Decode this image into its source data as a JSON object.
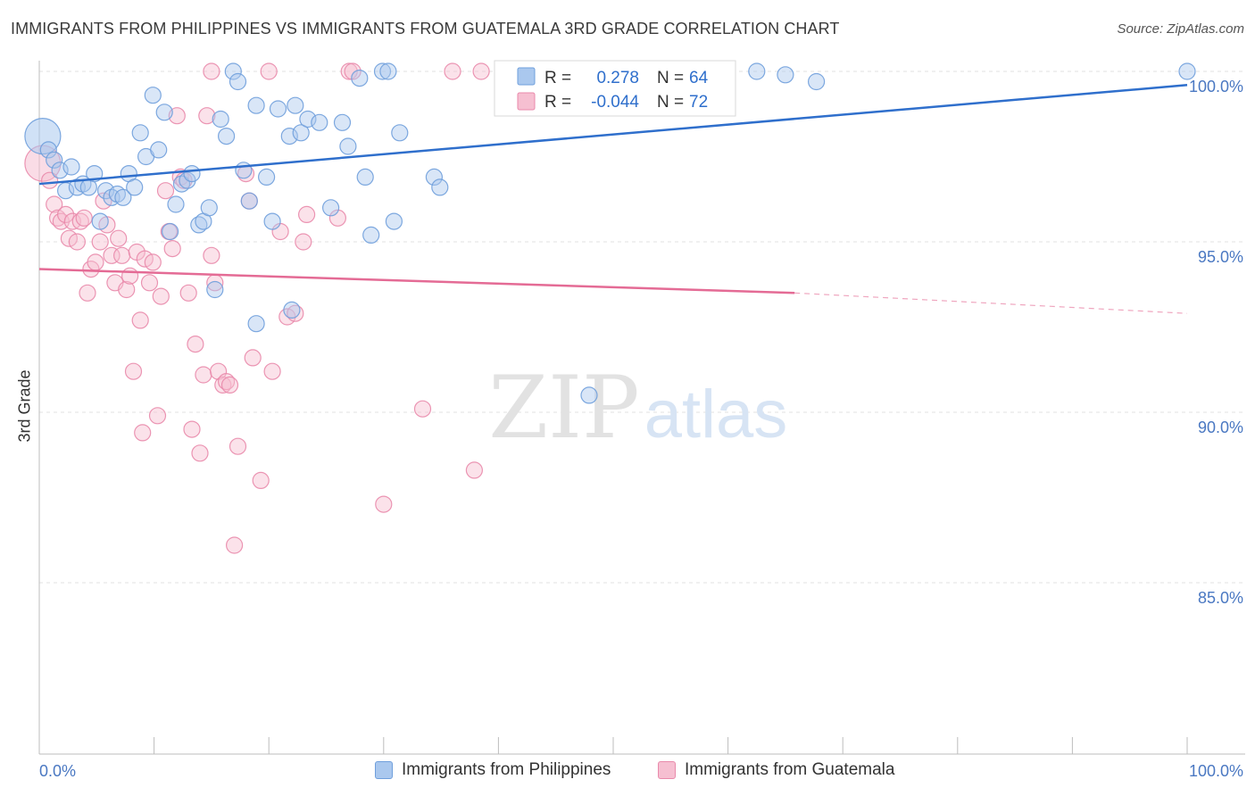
{
  "title": "IMMIGRANTS FROM PHILIPPINES VS IMMIGRANTS FROM GUATEMALA 3RD GRADE CORRELATION CHART",
  "source": "Source: ZipAtlas.com",
  "watermark": {
    "zip": "ZIP",
    "atlas": "atlas"
  },
  "colors": {
    "blue_fill": "#aac8ee",
    "blue_stroke": "#6f9fdc",
    "blue_line": "#2f6fcc",
    "pink_fill": "#f6bfd1",
    "pink_stroke": "#e98aab",
    "pink_line": "#e46b95",
    "axis_text": "#4a78c2"
  },
  "legend_box": {
    "rows": [
      {
        "r_label": "R =",
        "r_value": " 0.278",
        "n_label": "N =",
        "n_value": "64"
      },
      {
        "r_label": "R =",
        "r_value": "-0.044",
        "n_label": "N =",
        "n_value": "72"
      }
    ]
  },
  "chart_data": {
    "type": "scatter",
    "title": "IMMIGRANTS FROM PHILIPPINES VS IMMIGRANTS FROM GUATEMALA 3RD GRADE CORRELATION CHART",
    "xlabel": "",
    "ylabel": "3rd Grade",
    "xlim": [
      0,
      100
    ],
    "ylim": [
      80.0,
      100.8
    ],
    "x_tick_labels": [
      "0.0%",
      "100.0%"
    ],
    "y_ticks": [
      85,
      90,
      95,
      100
    ],
    "y_tick_labels": [
      "85.0%",
      "90.0%",
      "95.0%",
      "100.0%"
    ],
    "grid": true,
    "legend_position": "bottom",
    "series": [
      {
        "name": "Immigrants from Philippines",
        "color": "#aac8ee",
        "r": 0.278,
        "n": 64,
        "trend": {
          "x": [
            0,
            100
          ],
          "y": [
            96.7,
            99.6
          ],
          "dashed_from": null
        },
        "points": [
          [
            0.3,
            98.1
          ],
          [
            0.8,
            97.7
          ],
          [
            1.3,
            97.4
          ],
          [
            1.8,
            97.1
          ],
          [
            2.3,
            96.5
          ],
          [
            2.8,
            97.2
          ],
          [
            3.3,
            96.6
          ],
          [
            3.8,
            96.7
          ],
          [
            4.3,
            96.6
          ],
          [
            4.8,
            97.0
          ],
          [
            5.3,
            95.6
          ],
          [
            5.8,
            96.5
          ],
          [
            6.3,
            96.3
          ],
          [
            6.8,
            96.4
          ],
          [
            7.3,
            96.3
          ],
          [
            7.8,
            97.0
          ],
          [
            8.3,
            96.6
          ],
          [
            8.8,
            98.2
          ],
          [
            9.3,
            97.5
          ],
          [
            9.9,
            99.3
          ],
          [
            10.4,
            97.7
          ],
          [
            10.9,
            98.8
          ],
          [
            11.4,
            95.3
          ],
          [
            11.9,
            96.1
          ],
          [
            12.4,
            96.7
          ],
          [
            12.9,
            96.8
          ],
          [
            13.3,
            97.0
          ],
          [
            13.9,
            95.5
          ],
          [
            14.3,
            95.6
          ],
          [
            14.8,
            96.0
          ],
          [
            15.3,
            93.6
          ],
          [
            15.8,
            98.6
          ],
          [
            16.3,
            98.1
          ],
          [
            16.9,
            100.0
          ],
          [
            17.3,
            99.7
          ],
          [
            17.8,
            97.1
          ],
          [
            18.3,
            96.2
          ],
          [
            18.9,
            99.0
          ],
          [
            19.8,
            96.9
          ],
          [
            20.3,
            95.6
          ],
          [
            20.8,
            98.9
          ],
          [
            21.8,
            98.1
          ],
          [
            22.3,
            99.0
          ],
          [
            22.8,
            98.2
          ],
          [
            23.4,
            98.6
          ],
          [
            24.4,
            98.5
          ],
          [
            25.4,
            96.0
          ],
          [
            26.4,
            98.5
          ],
          [
            26.9,
            97.8
          ],
          [
            27.9,
            99.8
          ],
          [
            28.4,
            96.9
          ],
          [
            28.9,
            95.2
          ],
          [
            29.9,
            100.0
          ],
          [
            30.4,
            100.0
          ],
          [
            30.9,
            95.6
          ],
          [
            31.4,
            98.2
          ],
          [
            34.4,
            96.9
          ],
          [
            34.9,
            96.6
          ],
          [
            22.0,
            93.0
          ],
          [
            18.9,
            92.6
          ],
          [
            47.9,
            90.5
          ],
          [
            62.5,
            100.0
          ],
          [
            65.0,
            99.9
          ],
          [
            67.7,
            99.7
          ],
          [
            100.0,
            100.0
          ]
        ]
      },
      {
        "name": "Immigrants from Guatemala",
        "color": "#f6bfd1",
        "r": -0.044,
        "n": 72,
        "trend": {
          "x": [
            0,
            65.8,
            100
          ],
          "y": [
            94.2,
            93.5,
            92.9
          ],
          "dashed_from": 65.8
        },
        "points": [
          [
            0.3,
            97.3
          ],
          [
            0.9,
            96.8
          ],
          [
            1.3,
            96.1
          ],
          [
            1.6,
            95.7
          ],
          [
            1.9,
            95.6
          ],
          [
            2.3,
            95.8
          ],
          [
            2.6,
            95.1
          ],
          [
            2.9,
            95.6
          ],
          [
            3.3,
            95.0
          ],
          [
            3.6,
            95.6
          ],
          [
            3.9,
            95.7
          ],
          [
            4.2,
            93.5
          ],
          [
            4.5,
            94.2
          ],
          [
            4.9,
            94.4
          ],
          [
            5.3,
            95.0
          ],
          [
            5.6,
            96.2
          ],
          [
            5.9,
            95.5
          ],
          [
            6.3,
            94.6
          ],
          [
            6.6,
            93.8
          ],
          [
            6.9,
            95.1
          ],
          [
            7.2,
            94.6
          ],
          [
            7.6,
            93.6
          ],
          [
            7.9,
            94.0
          ],
          [
            8.2,
            91.2
          ],
          [
            8.5,
            94.7
          ],
          [
            8.8,
            92.7
          ],
          [
            9.2,
            94.5
          ],
          [
            9.6,
            93.8
          ],
          [
            9.9,
            94.4
          ],
          [
            10.3,
            89.9
          ],
          [
            10.6,
            93.4
          ],
          [
            11.0,
            96.5
          ],
          [
            11.3,
            95.3
          ],
          [
            11.6,
            94.8
          ],
          [
            12.0,
            98.7
          ],
          [
            12.3,
            96.9
          ],
          [
            12.6,
            96.8
          ],
          [
            13.0,
            93.5
          ],
          [
            13.3,
            89.5
          ],
          [
            13.6,
            92.0
          ],
          [
            14.0,
            88.8
          ],
          [
            14.3,
            91.1
          ],
          [
            14.6,
            98.7
          ],
          [
            15.0,
            94.6
          ],
          [
            15.3,
            93.8
          ],
          [
            15.6,
            91.2
          ],
          [
            16.0,
            90.8
          ],
          [
            16.3,
            90.9
          ],
          [
            16.6,
            90.8
          ],
          [
            17.0,
            86.1
          ],
          [
            17.3,
            89.0
          ],
          [
            18.0,
            97.0
          ],
          [
            18.3,
            96.2
          ],
          [
            18.6,
            91.6
          ],
          [
            19.3,
            88.0
          ],
          [
            20.3,
            91.2
          ],
          [
            21.0,
            95.3
          ],
          [
            21.6,
            92.8
          ],
          [
            22.3,
            92.9
          ],
          [
            23.0,
            95.0
          ],
          [
            23.3,
            95.8
          ],
          [
            26.0,
            95.7
          ],
          [
            27.0,
            100.0
          ],
          [
            27.3,
            100.0
          ],
          [
            30.0,
            87.3
          ],
          [
            33.4,
            90.1
          ],
          [
            36.0,
            100.0
          ],
          [
            38.5,
            100.0
          ],
          [
            20.0,
            100.0
          ],
          [
            15.0,
            100.0
          ],
          [
            9.0,
            89.4
          ],
          [
            37.9,
            88.3
          ]
        ]
      }
    ]
  },
  "legend_bottom": [
    {
      "label": "Immigrants from Philippines"
    },
    {
      "label": "Immigrants from Guatemala"
    }
  ]
}
